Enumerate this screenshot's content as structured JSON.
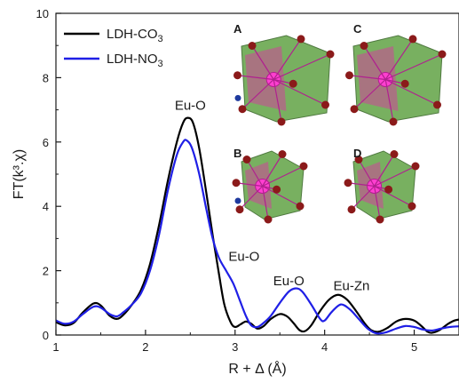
{
  "chart_data": {
    "type": "line",
    "title": "",
    "xlabel": "R + Δ (Å)",
    "ylabel": "FT(k³.χ)",
    "xlim": [
      1,
      5.5
    ],
    "ylim": [
      0,
      10
    ],
    "xticks": [
      1,
      2,
      3,
      4,
      5
    ],
    "yticks": [
      0,
      2,
      4,
      6,
      8,
      10
    ],
    "x_tick_labels": [
      "1",
      "2",
      "3",
      "4",
      "5"
    ],
    "y_tick_labels": [
      "0",
      "2",
      "4",
      "6",
      "8",
      "10"
    ],
    "grid": false,
    "legend_position": "top-left",
    "series": [
      {
        "name": "LDH-CO3",
        "legend_base": "LDH-CO",
        "legend_sub": "3",
        "color": "#000000",
        "points": [
          [
            1.0,
            0.4
          ],
          [
            1.1,
            0.3
          ],
          [
            1.2,
            0.38
          ],
          [
            1.3,
            0.7
          ],
          [
            1.42,
            0.98
          ],
          [
            1.5,
            0.92
          ],
          [
            1.6,
            0.6
          ],
          [
            1.68,
            0.5
          ],
          [
            1.75,
            0.62
          ],
          [
            1.85,
            0.95
          ],
          [
            1.95,
            1.4
          ],
          [
            2.05,
            2.2
          ],
          [
            2.15,
            3.4
          ],
          [
            2.25,
            4.8
          ],
          [
            2.35,
            6.0
          ],
          [
            2.42,
            6.6
          ],
          [
            2.47,
            6.75
          ],
          [
            2.53,
            6.6
          ],
          [
            2.6,
            5.8
          ],
          [
            2.68,
            4.4
          ],
          [
            2.75,
            3.1
          ],
          [
            2.82,
            1.9
          ],
          [
            2.88,
            0.95
          ],
          [
            2.95,
            0.4
          ],
          [
            3.0,
            0.25
          ],
          [
            3.06,
            0.33
          ],
          [
            3.12,
            0.42
          ],
          [
            3.18,
            0.35
          ],
          [
            3.25,
            0.2
          ],
          [
            3.32,
            0.28
          ],
          [
            3.4,
            0.5
          ],
          [
            3.5,
            0.65
          ],
          [
            3.58,
            0.58
          ],
          [
            3.65,
            0.38
          ],
          [
            3.72,
            0.15
          ],
          [
            3.78,
            0.12
          ],
          [
            3.85,
            0.3
          ],
          [
            3.95,
            0.75
          ],
          [
            4.05,
            1.1
          ],
          [
            4.15,
            1.25
          ],
          [
            4.25,
            1.1
          ],
          [
            4.35,
            0.75
          ],
          [
            4.45,
            0.35
          ],
          [
            4.52,
            0.15
          ],
          [
            4.6,
            0.1
          ],
          [
            4.7,
            0.22
          ],
          [
            4.8,
            0.42
          ],
          [
            4.9,
            0.5
          ],
          [
            5.0,
            0.45
          ],
          [
            5.08,
            0.28
          ],
          [
            5.15,
            0.1
          ],
          [
            5.2,
            0.07
          ],
          [
            5.28,
            0.15
          ],
          [
            5.38,
            0.35
          ],
          [
            5.45,
            0.45
          ],
          [
            5.5,
            0.48
          ]
        ]
      },
      {
        "name": "LDH-NO3",
        "legend_base": "LDH-NO",
        "legend_sub": "3",
        "color": "#1f1fe6",
        "points": [
          [
            1.0,
            0.45
          ],
          [
            1.1,
            0.35
          ],
          [
            1.2,
            0.42
          ],
          [
            1.3,
            0.65
          ],
          [
            1.42,
            0.88
          ],
          [
            1.5,
            0.85
          ],
          [
            1.6,
            0.65
          ],
          [
            1.68,
            0.58
          ],
          [
            1.75,
            0.7
          ],
          [
            1.85,
            0.95
          ],
          [
            1.95,
            1.3
          ],
          [
            2.05,
            2.0
          ],
          [
            2.15,
            3.1
          ],
          [
            2.25,
            4.5
          ],
          [
            2.35,
            5.6
          ],
          [
            2.42,
            6.0
          ],
          [
            2.46,
            6.05
          ],
          [
            2.52,
            5.8
          ],
          [
            2.6,
            5.0
          ],
          [
            2.68,
            3.9
          ],
          [
            2.75,
            3.0
          ],
          [
            2.82,
            2.4
          ],
          [
            2.9,
            2.0
          ],
          [
            2.98,
            1.6
          ],
          [
            3.05,
            1.1
          ],
          [
            3.12,
            0.6
          ],
          [
            3.18,
            0.3
          ],
          [
            3.25,
            0.25
          ],
          [
            3.32,
            0.38
          ],
          [
            3.4,
            0.6
          ],
          [
            3.5,
            1.0
          ],
          [
            3.6,
            1.35
          ],
          [
            3.68,
            1.45
          ],
          [
            3.75,
            1.35
          ],
          [
            3.85,
            0.95
          ],
          [
            3.95,
            0.5
          ],
          [
            4.0,
            0.45
          ],
          [
            4.08,
            0.72
          ],
          [
            4.18,
            0.95
          ],
          [
            4.28,
            0.8
          ],
          [
            4.38,
            0.5
          ],
          [
            4.48,
            0.2
          ],
          [
            4.58,
            0.05
          ],
          [
            4.68,
            0.08
          ],
          [
            4.8,
            0.2
          ],
          [
            4.9,
            0.28
          ],
          [
            5.0,
            0.25
          ],
          [
            5.1,
            0.17
          ],
          [
            5.2,
            0.14
          ],
          [
            5.3,
            0.2
          ],
          [
            5.4,
            0.25
          ],
          [
            5.5,
            0.27
          ]
        ]
      }
    ],
    "annotations": [
      {
        "text": "Eu-O",
        "x": 2.5,
        "y": 7.0
      },
      {
        "text": "Eu-O",
        "x": 3.1,
        "y": 2.3
      },
      {
        "text": "Eu-O",
        "x": 3.6,
        "y": 1.55
      },
      {
        "text": "Eu-Zn",
        "x": 4.3,
        "y": 1.4
      }
    ],
    "inset_panels": [
      {
        "letter": "A",
        "letter_color": "#2f5597"
      },
      {
        "letter": "C",
        "letter_color": "#1a1a1a"
      },
      {
        "letter": "B",
        "letter_color": "#2f5597"
      },
      {
        "letter": "D",
        "letter_color": "#1a1a1a"
      }
    ]
  }
}
